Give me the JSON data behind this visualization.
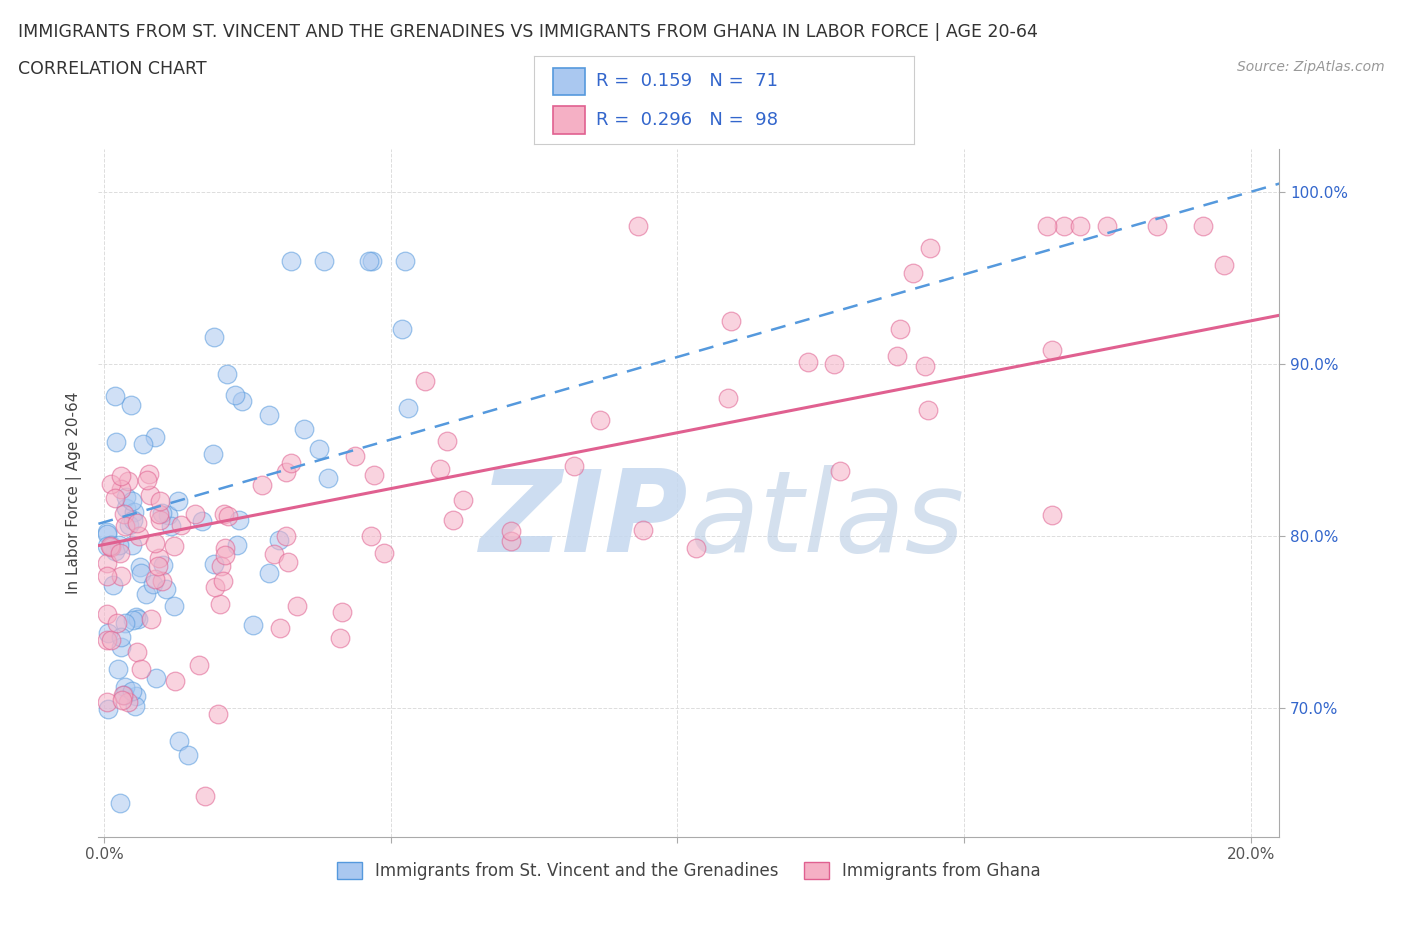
{
  "title_line1": "IMMIGRANTS FROM ST. VINCENT AND THE GRENADINES VS IMMIGRANTS FROM GHANA IN LABOR FORCE | AGE 20-64",
  "title_line2": "CORRELATION CHART",
  "source": "Source: ZipAtlas.com",
  "ylabel": "In Labor Force | Age 20-64",
  "x_min": -0.001,
  "x_max": 0.205,
  "y_min": 0.625,
  "y_max": 1.025,
  "y_ticks": [
    0.7,
    0.8,
    0.9,
    1.0
  ],
  "y_tick_labels": [
    "70.0%",
    "80.0%",
    "90.0%",
    "100.0%"
  ],
  "x_ticks": [
    0.0,
    0.05,
    0.1,
    0.15,
    0.2
  ],
  "x_tick_labels": [
    "0.0%",
    "",
    "",
    "",
    "20.0%"
  ],
  "series1_name": "Immigrants from St. Vincent and the Grenadines",
  "series1_color": "#aac8f0",
  "series1_edge_color": "#5599dd",
  "series1_R": 0.159,
  "series1_N": 71,
  "series2_name": "Immigrants from Ghana",
  "series2_color": "#f5b0c5",
  "series2_edge_color": "#e06090",
  "series2_R": 0.296,
  "series2_N": 98,
  "legend_text_color": "#3366cc",
  "watermark_color": "#ddeeff",
  "background_color": "#ffffff",
  "grid_color": "#dddddd",
  "tick_color": "#aaaaaa",
  "right_tick_color": "#3366cc"
}
